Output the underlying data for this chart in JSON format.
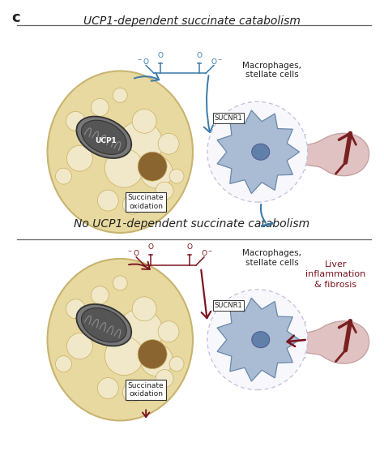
{
  "title_top": "UCP1-dependent succinate catabolism",
  "title_bottom": "No UCP1-dependent succinate catabolism",
  "panel_label": "c",
  "bg_color": "#ffffff",
  "title_fontsize": 10,
  "small_fontsize": 7.5,
  "panel_label_fontsize": 13,
  "colors": {
    "cell_fill": "#e8d9a0",
    "cell_edge": "#c8b470",
    "mito_outer": "#444444",
    "mito_fill": "#888888",
    "mito_dark": "#333333",
    "lipid_fill": "#f0e8c8",
    "lipid_edge": "#c8b060",
    "lipid_brown": "#8B6530",
    "macrophage_fill": "#aabbd4",
    "macrophage_edge": "#6888aa",
    "nucleus_fill": "#6080aa",
    "nucleus_edge": "#506090",
    "sucnr1_box": "#ffffff",
    "sucnr1_border": "#333333",
    "arrow_blue": "#3a7aaa",
    "arrow_red": "#7a1520",
    "liver_fill": "#c89090",
    "liver_edge": "#a07070",
    "vessel_color": "#7a2020",
    "circle_fill": "#f8f8fc",
    "circle_edge": "#c0c0d8",
    "separator_color": "#666666",
    "text_color": "#222222"
  }
}
